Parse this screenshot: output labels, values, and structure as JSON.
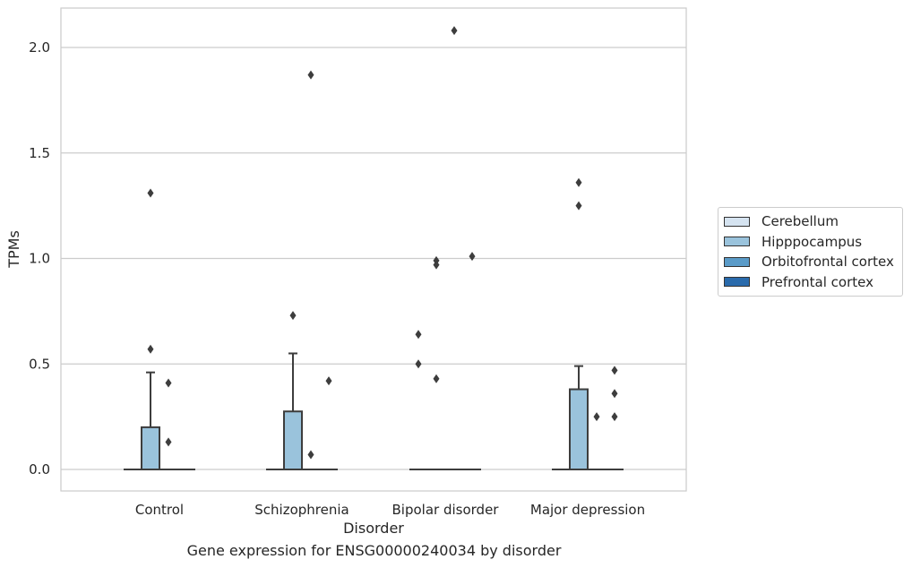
{
  "chart_data": {
    "type": "box",
    "caption": "Gene expression for ENSG00000240034 by disorder",
    "xlabel": "Disorder",
    "ylabel": "TPMs",
    "ylim": [
      -0.1,
      2.18
    ],
    "yticks": [
      "0.0",
      "0.5",
      "1.0",
      "1.5",
      "2.0"
    ],
    "ytick_values": [
      0.0,
      0.5,
      1.0,
      1.5,
      2.0
    ],
    "grid": "horizontal",
    "legend_position": "right",
    "categories": [
      "Control",
      "Schizophrenia",
      "Bipolar disorder",
      "Major depression"
    ],
    "series": [
      {
        "name": "Cerebellum",
        "color": "#d5e3f0",
        "boxes": [
          {
            "q1": 0,
            "median": 0,
            "q3": 0,
            "whisker_low": 0,
            "whisker_high": 0,
            "outliers": []
          },
          {
            "q1": 0,
            "median": 0,
            "q3": 0,
            "whisker_low": 0,
            "whisker_high": 0,
            "outliers": []
          },
          {
            "q1": 0,
            "median": 0,
            "q3": 0,
            "whisker_low": 0,
            "whisker_high": 0,
            "outliers": [
              0.64,
              0.5
            ]
          },
          {
            "q1": 0,
            "median": 0,
            "q3": 0,
            "whisker_low": 0,
            "whisker_high": 0,
            "outliers": []
          }
        ]
      },
      {
        "name": "Hipppocampus",
        "color": "#9ac3dc",
        "boxes": [
          {
            "q1": 0,
            "median": 0,
            "q3": 0.2,
            "whisker_low": 0,
            "whisker_high": 0.46,
            "outliers": [
              1.31,
              0.57
            ]
          },
          {
            "q1": 0,
            "median": 0,
            "q3": 0.275,
            "whisker_low": 0,
            "whisker_high": 0.55,
            "outliers": [
              0.73
            ]
          },
          {
            "q1": 0,
            "median": 0,
            "q3": 0,
            "whisker_low": 0,
            "whisker_high": 0,
            "outliers": [
              0.99,
              0.97,
              0.43
            ]
          },
          {
            "q1": 0,
            "median": 0,
            "q3": 0.38,
            "whisker_low": 0,
            "whisker_high": 0.49,
            "outliers": [
              1.36,
              1.25
            ]
          }
        ]
      },
      {
        "name": "Orbitofrontal cortex",
        "color": "#5a9bc8",
        "boxes": [
          {
            "q1": 0,
            "median": 0,
            "q3": 0,
            "whisker_low": 0,
            "whisker_high": 0,
            "outliers": [
              0.41,
              0.13
            ]
          },
          {
            "q1": 0,
            "median": 0,
            "q3": 0,
            "whisker_low": 0,
            "whisker_high": 0,
            "outliers": [
              1.87,
              0.07
            ]
          },
          {
            "q1": 0,
            "median": 0,
            "q3": 0,
            "whisker_low": 0,
            "whisker_high": 0,
            "outliers": [
              2.08
            ]
          },
          {
            "q1": 0,
            "median": 0,
            "q3": 0,
            "whisker_low": 0,
            "whisker_high": 0,
            "outliers": [
              0.25
            ]
          }
        ]
      },
      {
        "name": "Prefrontal cortex",
        "color": "#2a6bac",
        "boxes": [
          {
            "q1": 0,
            "median": 0,
            "q3": 0,
            "whisker_low": 0,
            "whisker_high": 0,
            "outliers": []
          },
          {
            "q1": 0,
            "median": 0,
            "q3": 0,
            "whisker_low": 0,
            "whisker_high": 0,
            "outliers": [
              0.42
            ]
          },
          {
            "q1": 0,
            "median": 0,
            "q3": 0,
            "whisker_low": 0,
            "whisker_high": 0,
            "outliers": [
              1.01
            ]
          },
          {
            "q1": 0,
            "median": 0,
            "q3": 0,
            "whisker_low": 0,
            "whisker_high": 0,
            "outliers": [
              0.47,
              0.36,
              0.25
            ]
          }
        ]
      }
    ]
  }
}
